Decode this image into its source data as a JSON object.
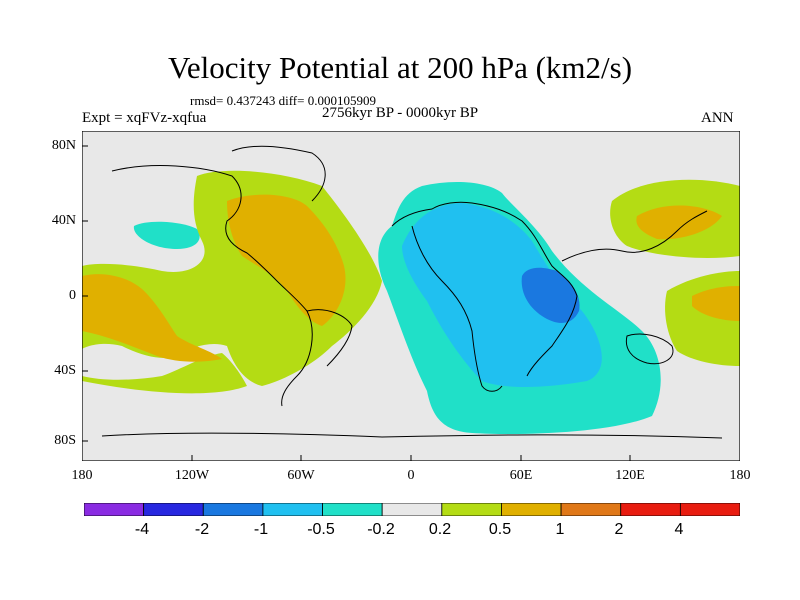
{
  "title": "Velocity Potential at 200 hPa (km2/s)",
  "stats": "rmsd= 0.437243 diff= 0.000105909",
  "experiment": "Expt = xqFVz-xqfua",
  "period": "2756kyr BP - 0000kyr BP",
  "season": "ANN",
  "y_axis": {
    "ticks": [
      "80N",
      "40N",
      "0",
      "40S",
      "80S"
    ]
  },
  "x_axis": {
    "ticks": [
      "180",
      "120W",
      "60W",
      "0",
      "60E",
      "120E",
      "180"
    ]
  },
  "colorbar": {
    "labels": [
      "-4",
      "-2",
      "-1",
      "-0.5",
      "-0.2",
      "0.2",
      "0.5",
      "1",
      "2",
      "4"
    ],
    "colors": [
      "#8a2be2",
      "#2828e0",
      "#1a78e0",
      "#20c0f0",
      "#20e0c8",
      "#e8e8e8",
      "#b4dc14",
      "#e0b000",
      "#e07818",
      "#e81c10"
    ]
  },
  "map_colors": {
    "background": "#e8e8e8",
    "neg_02": "#20e0c8",
    "neg_05": "#20c0f0",
    "neg_1": "#1a78e0",
    "pos_02": "#b4dc14",
    "pos_05": "#e0b000"
  }
}
